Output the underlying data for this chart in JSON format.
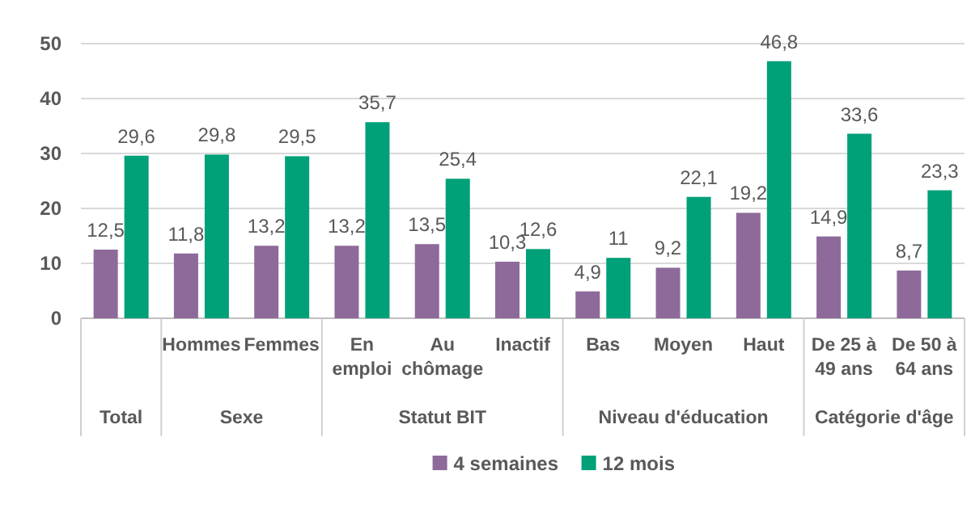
{
  "chart_data": {
    "type": "bar",
    "categories": [
      null,
      "Hommes",
      "Femmes",
      "En emploi",
      "Au chômage",
      "Inactif",
      "Bas",
      "Moyen",
      "Haut",
      "De 25 à 49 ans",
      "De 50 à 64 ans"
    ],
    "series": [
      {
        "name": "4 semaines",
        "color": "#8e6a9a",
        "values": [
          12.5,
          11.8,
          13.2,
          13.2,
          13.5,
          10.3,
          4.9,
          9.2,
          19.2,
          14.9,
          8.7
        ],
        "value_labels": [
          "12,5",
          "11,8",
          "13,2",
          "13,2",
          "13,5",
          "10,3",
          "4,9",
          "9,2",
          "19,2",
          "14,9",
          "8,7"
        ]
      },
      {
        "name": "12 mois",
        "color": "#00a078",
        "values": [
          29.6,
          29.8,
          29.5,
          35.7,
          25.4,
          12.6,
          11,
          22.1,
          46.8,
          33.6,
          23.3
        ],
        "value_labels": [
          "29,6",
          "29,8",
          "29,5",
          "35,7",
          "25,4",
          "12,6",
          "11",
          "22,1",
          "46,8",
          "33,6",
          "23,3"
        ]
      }
    ],
    "annotations": [
      "Total",
      "Sexe",
      "Statut BIT",
      "Niveau d'éducation",
      "Catégorie d'âge"
    ],
    "ylim": [
      0,
      50
    ],
    "yticks": [
      0,
      10,
      20,
      30,
      40,
      50
    ],
    "grid": "y",
    "legend": "bottom"
  }
}
